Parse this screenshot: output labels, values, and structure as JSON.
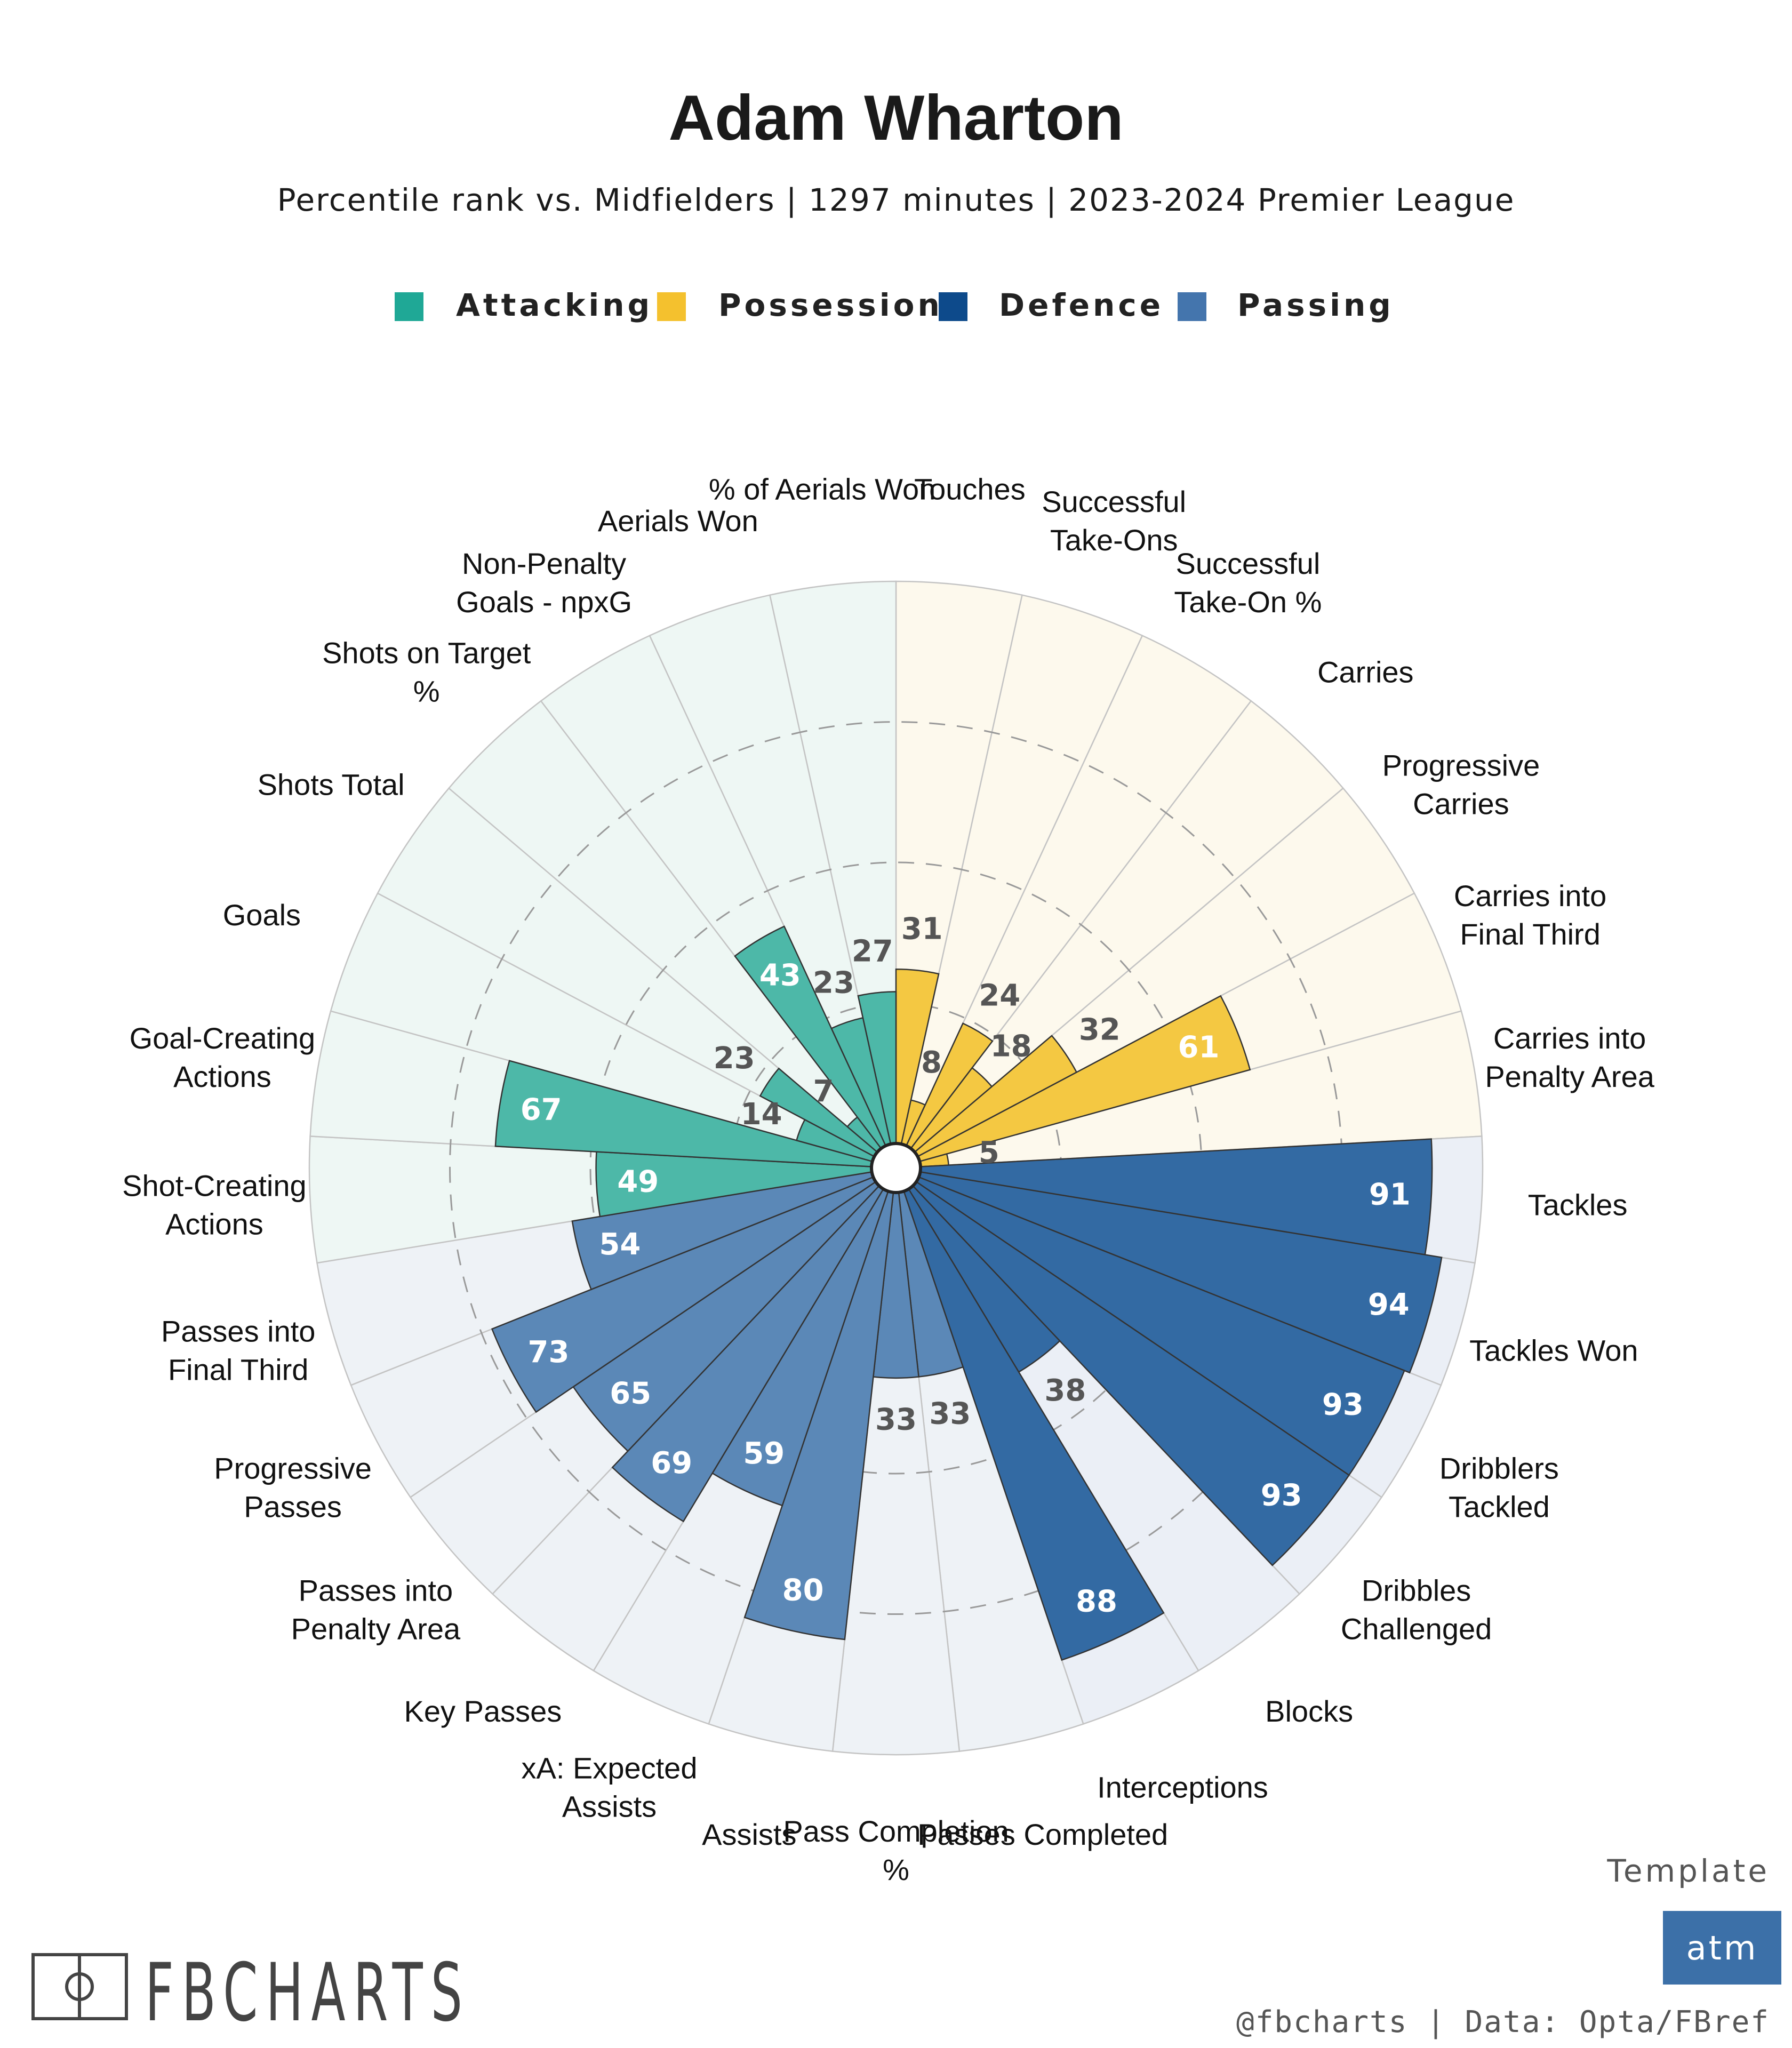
{
  "header": {
    "title": "Adam Wharton",
    "subtitle": "Percentile rank vs. Midfielders | 1297 minutes | 2023-2024 Premier League"
  },
  "legend": [
    {
      "label": "Attacking",
      "color": "#1fa896"
    },
    {
      "label": "Possession",
      "color": "#f4c12e"
    },
    {
      "label": "Defence",
      "color": "#0d4a8b"
    },
    {
      "label": "Passing",
      "color": "#4475ad"
    }
  ],
  "footer": {
    "template_label": "Template",
    "template_badge": "atm",
    "credit": "@fbcharts | Data: Opta/FBref",
    "brand": "FBCHARTS"
  },
  "chart_data": {
    "type": "polar-bar",
    "scale": [
      0,
      100
    ],
    "rings": [
      25,
      50,
      75
    ],
    "groups": {
      "Attacking": {
        "bar": "#4db8a8",
        "bg": "#eef7f4",
        "text": "#ffffff"
      },
      "Possession": {
        "bar": "#f4c842",
        "bg": "#fdf9ed",
        "text": "#ffffff"
      },
      "Defence": {
        "bar": "#336aa3",
        "bg": "#ebeff6",
        "text": "#ffffff"
      },
      "Passing": {
        "bar": "#5b88b7",
        "bg": "#eef2f6",
        "text": "#ffffff"
      }
    },
    "categories": [
      {
        "label": "Touches",
        "value": 31,
        "group": "Possession"
      },
      {
        "label": "Successful Take-Ons",
        "value": 8,
        "group": "Possession"
      },
      {
        "label": "Successful Take-On %",
        "value": 24,
        "group": "Possession"
      },
      {
        "label": "Carries",
        "value": 18,
        "group": "Possession"
      },
      {
        "label": "Progressive Carries",
        "value": 32,
        "group": "Possession"
      },
      {
        "label": "Carries into Final Third",
        "value": 61,
        "group": "Possession"
      },
      {
        "label": "Carries into Penalty Area",
        "value": 5,
        "group": "Possession"
      },
      {
        "label": "Tackles",
        "value": 91,
        "group": "Defence"
      },
      {
        "label": "Tackles Won",
        "value": 94,
        "group": "Defence"
      },
      {
        "label": "Dribblers Tackled",
        "value": 93,
        "group": "Defence"
      },
      {
        "label": "Dribbles Challenged",
        "value": 93,
        "group": "Defence"
      },
      {
        "label": "Blocks",
        "value": 38,
        "group": "Defence"
      },
      {
        "label": "Interceptions",
        "value": 88,
        "group": "Defence"
      },
      {
        "label": "Passes Completed",
        "value": 33,
        "group": "Passing"
      },
      {
        "label": "Pass Completion %",
        "value": 33,
        "group": "Passing"
      },
      {
        "label": "Assists",
        "value": 80,
        "group": "Passing"
      },
      {
        "label": "xA: Expected Assists",
        "value": 59,
        "group": "Passing"
      },
      {
        "label": "Key Passes",
        "value": 69,
        "group": "Passing"
      },
      {
        "label": "Passes into Penalty Area",
        "value": 65,
        "group": "Passing"
      },
      {
        "label": "Progressive Passes",
        "value": 73,
        "group": "Passing"
      },
      {
        "label": "Passes into Final Third",
        "value": 54,
        "group": "Passing"
      },
      {
        "label": "Shot-Creating Actions",
        "value": 49,
        "group": "Attacking"
      },
      {
        "label": "Goal-Creating Actions",
        "value": 67,
        "group": "Attacking"
      },
      {
        "label": "Goals",
        "value": 14,
        "group": "Attacking"
      },
      {
        "label": "Shots Total",
        "value": 23,
        "group": "Attacking"
      },
      {
        "label": "Shots on Target %",
        "value": 7,
        "group": "Attacking"
      },
      {
        "label": "Non-Penalty Goals - npxG",
        "value": 43,
        "group": "Attacking"
      },
      {
        "label": "Aerials Won",
        "value": 23,
        "group": "Attacking"
      },
      {
        "label": "% of Aerials Won",
        "value": 27,
        "group": "Attacking"
      }
    ]
  }
}
